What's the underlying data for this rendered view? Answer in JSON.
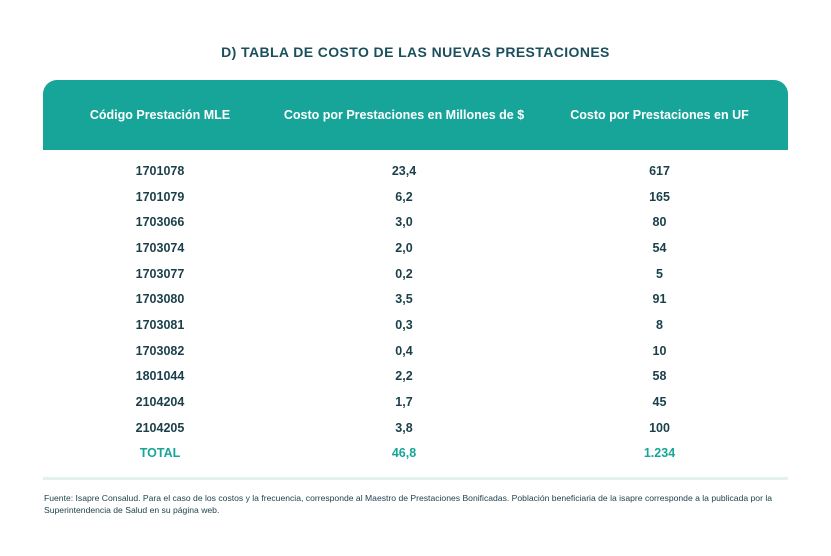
{
  "title": "D) TABLA DE COSTO DE LAS NUEVAS PRESTACIONES",
  "table": {
    "headers": [
      "Código Prestación MLE",
      "Costo por Prestaciones en Millones de $",
      "Costo por Prestaciones en UF"
    ],
    "rows": [
      [
        "1701078",
        "23,4",
        "617"
      ],
      [
        "1701079",
        "6,2",
        "165"
      ],
      [
        "1703066",
        "3,0",
        "80"
      ],
      [
        "1703074",
        "2,0",
        "54"
      ],
      [
        "1703077",
        "0,2",
        "5"
      ],
      [
        "1703080",
        "3,5",
        "91"
      ],
      [
        "1703081",
        "0,3",
        "8"
      ],
      [
        "1703082",
        "0,4",
        "10"
      ],
      [
        "1801044",
        "2,2",
        "58"
      ],
      [
        "2104204",
        "1,7",
        "45"
      ],
      [
        "2104205",
        "3,8",
        "100"
      ]
    ],
    "total": [
      "TOTAL",
      "46,8",
      "1.234"
    ]
  },
  "source": "Fuente: Isapre Consalud. Para el caso de los costos y la frecuencia, corresponde al Maestro de Prestaciones Bonificadas. Población beneficiaria de la isapre corresponde a la publicada por la Superintendencia de Salud en su página web.",
  "colors": {
    "header_bg": "#17a59a",
    "text": "#1b3f4a",
    "total": "#17a59a",
    "divider": "#e3f2ef"
  }
}
